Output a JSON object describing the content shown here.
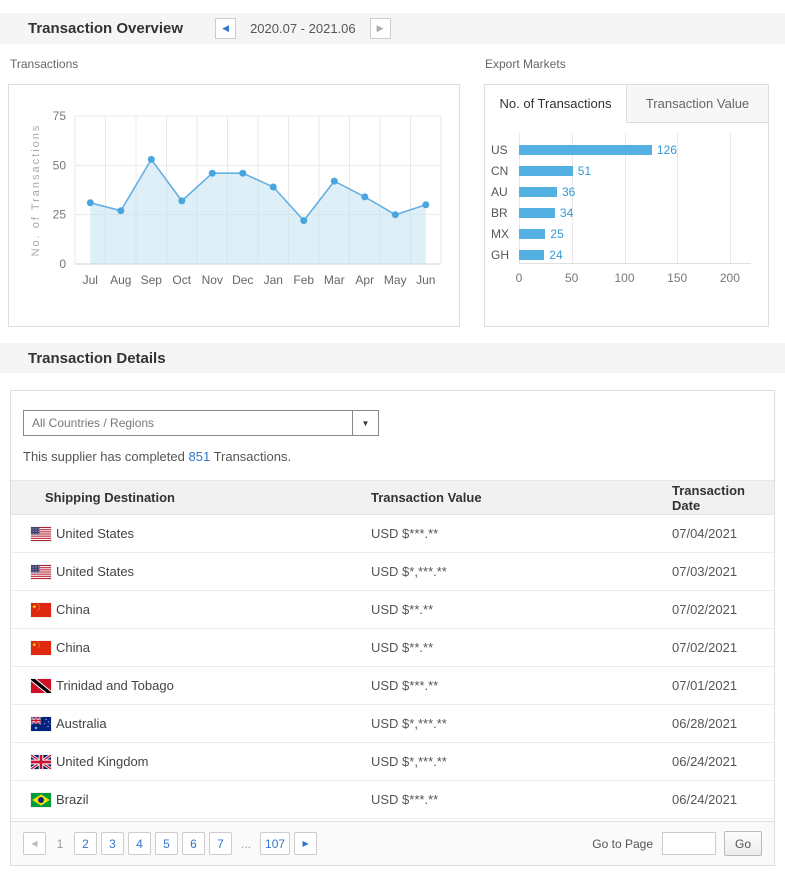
{
  "colors": {
    "link-blue": "#3077c8"
  },
  "header": {
    "title": "Transaction Overview",
    "date_range": "2020.07 - 2021.06"
  },
  "transactions_panel": {
    "label": "Transactions"
  },
  "export_markets": {
    "label": "Export Markets",
    "tabs": [
      {
        "label": "No. of Transactions",
        "active": true
      },
      {
        "label": "Transaction Value",
        "active": false
      }
    ]
  },
  "chart_data": [
    {
      "id": "transactions-trend",
      "type": "line",
      "title": "Transactions",
      "xlabel": "",
      "ylabel": "No. of Transactions",
      "x": [
        "Jul",
        "Aug",
        "Sep",
        "Oct",
        "Nov",
        "Dec",
        "Jan",
        "Feb",
        "Mar",
        "Apr",
        "May",
        "Jun"
      ],
      "values": [
        31,
        27,
        53,
        32,
        46,
        46,
        39,
        22,
        42,
        34,
        25,
        30
      ],
      "yticks": [
        0,
        25,
        50,
        75
      ],
      "ylim": [
        0,
        75
      ],
      "grid": true,
      "legend": "none",
      "line_color": "#63b0e3",
      "fill_color": "#bddff2",
      "point_color": "#49a5de"
    },
    {
      "id": "export-markets",
      "type": "bar",
      "orientation": "horizontal",
      "title": "Export Markets - No. of Transactions",
      "categories": [
        "US",
        "CN",
        "AU",
        "BR",
        "MX",
        "GH"
      ],
      "values": [
        126,
        51,
        36,
        34,
        25,
        24
      ],
      "xticks": [
        0,
        50,
        100,
        150,
        200
      ],
      "xlim": [
        0,
        220
      ],
      "grid": true,
      "legend": "none",
      "bar_color": "#54b0e2",
      "value_label_color": "#3399d6"
    }
  ],
  "details": {
    "title": "Transaction Details",
    "filter": {
      "value": "All Countries / Regions"
    },
    "summary": {
      "prefix": "This supplier has completed ",
      "count": "851",
      "suffix": " Transactions."
    },
    "table": {
      "columns": [
        "Shipping Destination",
        "Transaction Value",
        "Transaction Date"
      ],
      "rows": [
        {
          "flag": "us",
          "country": "United States",
          "value": "USD $***.**",
          "date": "07/04/2021"
        },
        {
          "flag": "us",
          "country": "United States",
          "value": "USD $*,***.**",
          "date": "07/03/2021"
        },
        {
          "flag": "cn",
          "country": "China",
          "value": "USD $**.**",
          "date": "07/02/2021"
        },
        {
          "flag": "cn",
          "country": "China",
          "value": "USD $**.**",
          "date": "07/02/2021"
        },
        {
          "flag": "tt",
          "country": "Trinidad and Tobago",
          "value": "USD $***.**",
          "date": "07/01/2021"
        },
        {
          "flag": "au",
          "country": "Australia",
          "value": "USD $*,***.**",
          "date": "06/28/2021"
        },
        {
          "flag": "gb",
          "country": "United Kingdom",
          "value": "USD $*,***.**",
          "date": "06/24/2021"
        },
        {
          "flag": "br",
          "country": "Brazil",
          "value": "USD $***.**",
          "date": "06/24/2021"
        }
      ]
    },
    "pagination": {
      "current": "1",
      "pages": [
        "2",
        "3",
        "4",
        "5",
        "6",
        "7"
      ],
      "ellipsis": "...",
      "last_page": "107",
      "goto_label": "Go to Page",
      "go_button": "Go"
    }
  },
  "icons": {
    "prev": "left-arrow",
    "next": "right-arrow",
    "dropdown": "chevron-down"
  }
}
